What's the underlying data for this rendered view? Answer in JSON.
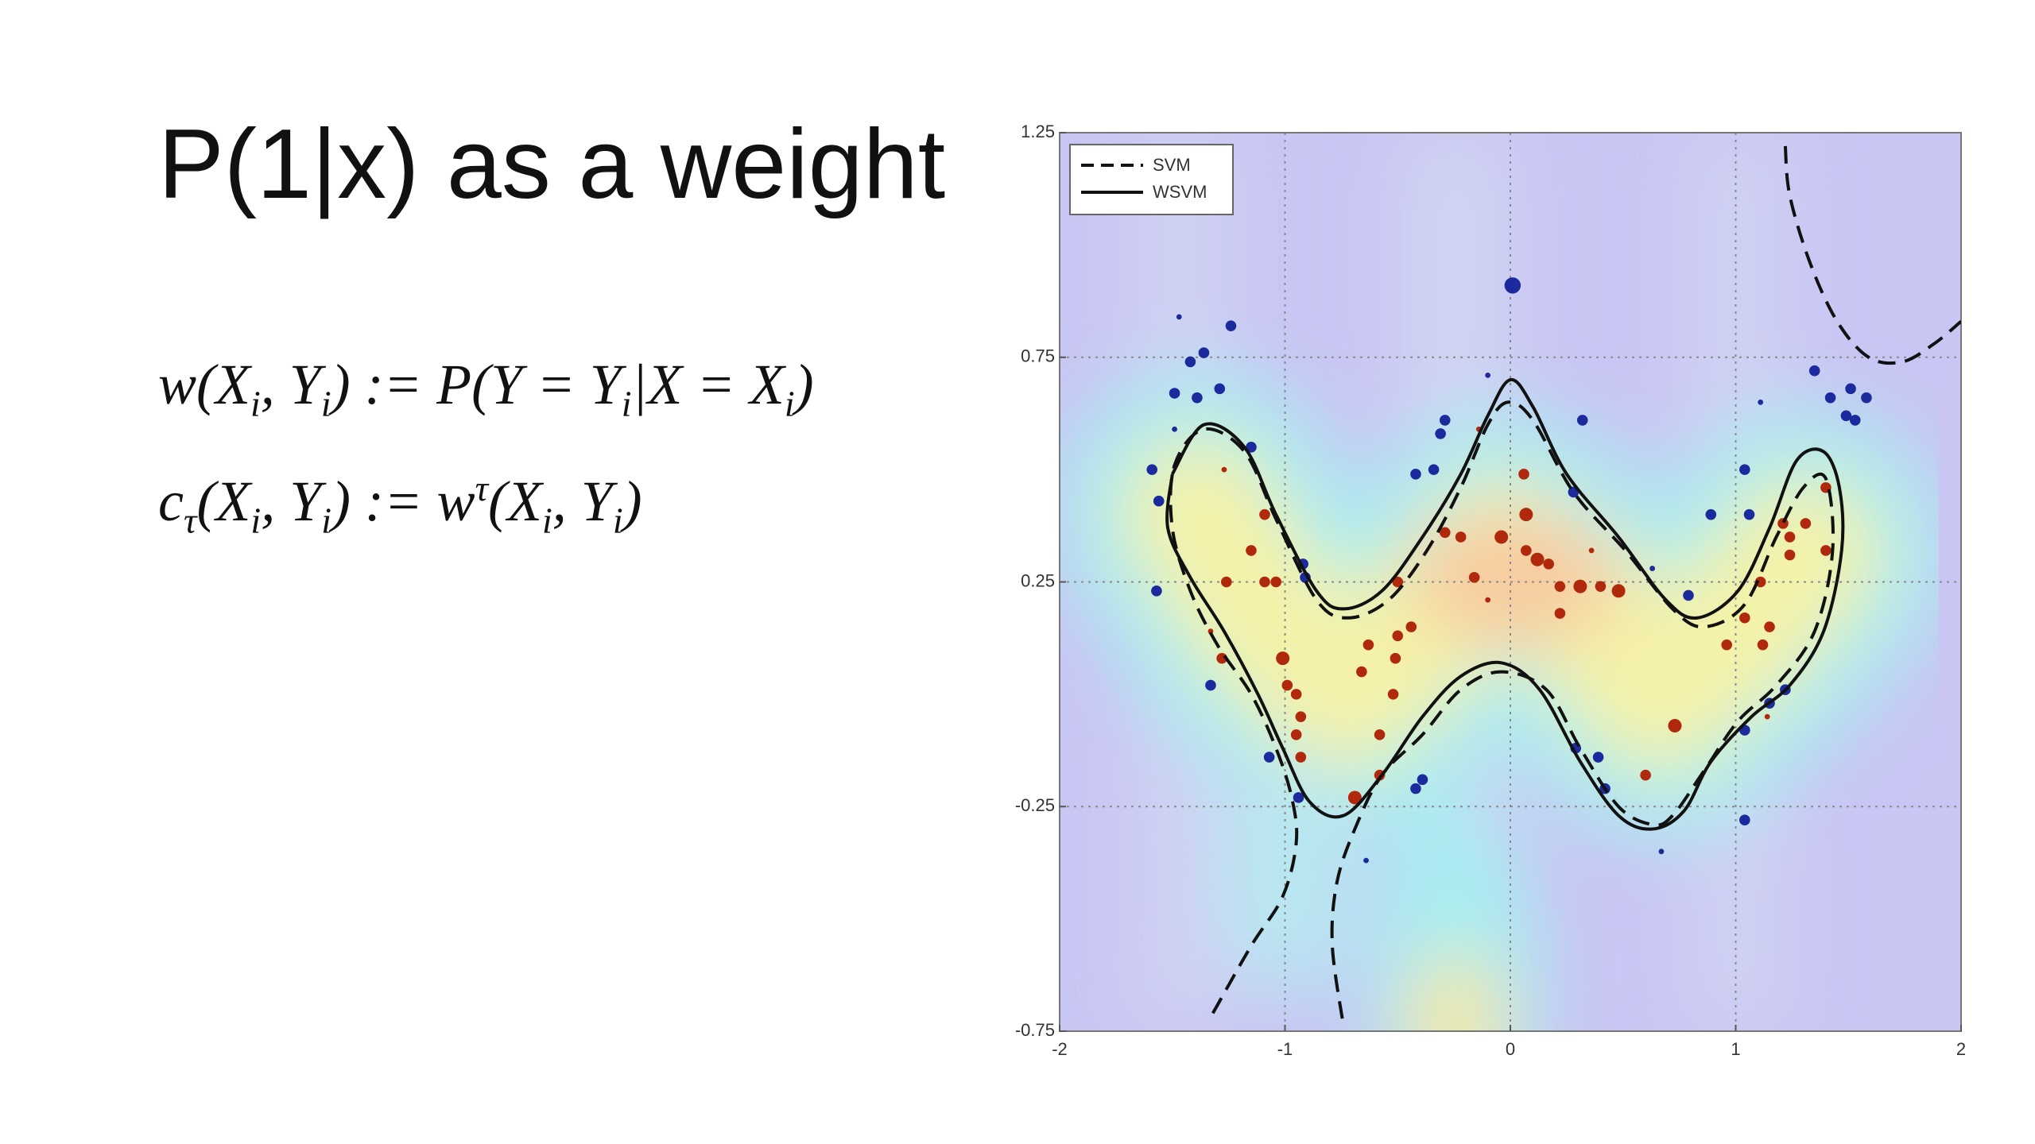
{
  "title": "P(1|x) as a weight",
  "formulas": [
    [
      {
        "text": "w(X"
      },
      {
        "sub": "i"
      },
      {
        "text": ", Y"
      },
      {
        "sub": "i"
      },
      {
        "text": ") := P(Y = Y"
      },
      {
        "sub": "i"
      },
      {
        "text": "|X = X"
      },
      {
        "sub": "i"
      },
      {
        "text": ")"
      }
    ],
    [
      {
        "text": "c"
      },
      {
        "sub": "τ"
      },
      {
        "text": "(X"
      },
      {
        "sub": "i"
      },
      {
        "text": ", Y"
      },
      {
        "sub": "i"
      },
      {
        "text": ") := w"
      },
      {
        "sup": "τ"
      },
      {
        "text": "(X"
      },
      {
        "sub": "i"
      },
      {
        "text": ", Y"
      },
      {
        "sub": "i"
      },
      {
        "text": ")"
      }
    ]
  ],
  "chart_data": {
    "type": "scatter",
    "xlim": [
      -2,
      2
    ],
    "ylim": [
      -0.75,
      1.25
    ],
    "xticks": [
      -2,
      -1,
      0,
      1,
      2
    ],
    "yticks": [
      -0.75,
      -0.25,
      0.25,
      0.75,
      1.25
    ],
    "grid": true,
    "legend": "upper left",
    "series": [
      {
        "mode": "markers",
        "color": "#1b2a9c",
        "x": [
          0.01,
          -1.24,
          -1.47,
          -1.36,
          -1.42,
          -1.49,
          -1.39,
          -1.29,
          -1.49,
          -1.15,
          -1.59,
          -1.56,
          -1.57,
          -0.92,
          -0.91,
          -1.33,
          -1.07,
          -0.94,
          -0.42,
          -0.39,
          -0.64,
          -0.29,
          -0.31,
          -0.34,
          -0.42,
          -0.1,
          0.32,
          0.28,
          0.29,
          0.42,
          0.39,
          0.67,
          1.04,
          1.04,
          1.15,
          1.22,
          0.89,
          1.04,
          1.06,
          1.35,
          1.42,
          1.51,
          1.58,
          1.49,
          1.53,
          1.11,
          0.79,
          0.63
        ],
        "values": [
          0.91,
          0.82,
          0.84,
          0.76,
          0.74,
          0.67,
          0.66,
          0.68,
          0.59,
          0.55,
          0.5,
          0.43,
          0.23,
          0.29,
          0.26,
          0.02,
          -0.14,
          -0.23,
          -0.21,
          -0.19,
          -0.37,
          0.61,
          0.58,
          0.5,
          0.49,
          0.71,
          0.61,
          0.45,
          -0.12,
          -0.21,
          -0.14,
          -0.35,
          -0.28,
          -0.08,
          -0.02,
          0.01,
          0.4,
          0.5,
          0.4,
          0.72,
          0.66,
          0.68,
          0.66,
          0.62,
          0.61,
          0.65,
          0.22,
          0.28
        ],
        "sizes": [
          6,
          4,
          2,
          4,
          4,
          4,
          4,
          4,
          2,
          4,
          4,
          4,
          4,
          4,
          4,
          4,
          4,
          4,
          4,
          4,
          2,
          4,
          4,
          4,
          4,
          2,
          4,
          4,
          4,
          4,
          4,
          2,
          4,
          4,
          4,
          4,
          4,
          4,
          4,
          4,
          4,
          4,
          4,
          4,
          4,
          2,
          4,
          2
        ]
      },
      {
        "mode": "markers",
        "color": "#b0290c",
        "x": [
          -1.27,
          -1.09,
          -1.15,
          -1.26,
          -1.09,
          -1.04,
          -1.33,
          -1.28,
          -1.01,
          -0.99,
          -0.95,
          -0.93,
          -0.95,
          -0.93,
          -0.69,
          -0.58,
          -0.58,
          -0.52,
          -0.66,
          -0.63,
          -0.5,
          -0.51,
          -0.44,
          -0.5,
          -0.29,
          -0.22,
          -0.16,
          -0.04,
          0.06,
          0.07,
          0.07,
          0.12,
          0.17,
          0.22,
          0.22,
          0.31,
          0.4,
          0.48,
          0.36,
          0.73,
          0.6,
          0.96,
          1.04,
          1.12,
          1.15,
          1.11,
          1.24,
          1.24,
          1.21,
          1.31,
          1.4,
          1.4,
          1.14,
          -0.14,
          -0.1
        ],
        "values": [
          0.5,
          0.4,
          0.32,
          0.25,
          0.25,
          0.25,
          0.14,
          0.08,
          0.08,
          0.02,
          0.0,
          -0.05,
          -0.09,
          -0.14,
          -0.23,
          -0.18,
          -0.09,
          0.0,
          0.05,
          0.11,
          0.13,
          0.08,
          0.15,
          0.25,
          0.36,
          0.35,
          0.26,
          0.35,
          0.49,
          0.4,
          0.32,
          0.3,
          0.29,
          0.18,
          0.24,
          0.24,
          0.24,
          0.23,
          0.32,
          -0.07,
          -0.18,
          0.11,
          0.17,
          0.11,
          0.15,
          0.25,
          0.31,
          0.35,
          0.38,
          0.38,
          0.46,
          0.32,
          -0.05,
          0.59,
          0.21
        ],
        "sizes": [
          2,
          4,
          4,
          4,
          4,
          4,
          2,
          4,
          5,
          4,
          4,
          4,
          4,
          4,
          5,
          4,
          4,
          4,
          4,
          4,
          4,
          4,
          4,
          4,
          4,
          4,
          4,
          5,
          4,
          5,
          4,
          5,
          4,
          4,
          4,
          5,
          4,
          5,
          2,
          5,
          4,
          4,
          4,
          4,
          4,
          4,
          4,
          4,
          4,
          4,
          4,
          4,
          2,
          2,
          2
        ]
      },
      {
        "name": "SVM",
        "mode": "line",
        "dash": true,
        "color": "#111111",
        "x": [
          -1.32,
          -1.15,
          -1.01,
          -0.95,
          -0.97,
          -1.04,
          -1.15,
          -1.3,
          -1.42,
          -1.5,
          -1.49,
          -1.36,
          -1.18,
          -1.04,
          -0.86,
          -0.72,
          -0.54,
          -0.37,
          -0.22,
          -0.1,
          -0.01,
          0.1,
          0.28,
          0.51,
          0.72,
          0.86,
          1.04,
          1.18,
          1.3,
          1.4,
          1.43,
          1.35,
          1.18,
          1.01,
          0.86,
          0.72,
          0.63,
          0.48,
          0.31,
          0.16,
          -0.04,
          -0.22,
          -0.39,
          -0.57,
          -0.69,
          -0.77,
          -0.79,
          -0.74,
          null,
          1.22,
          1.24,
          1.33,
          1.45,
          1.59,
          1.74,
          1.88,
          2.0
        ],
        "values": [
          -0.71,
          -0.56,
          -0.45,
          -0.33,
          -0.23,
          -0.12,
          0.0,
          0.11,
          0.23,
          0.37,
          0.51,
          0.59,
          0.54,
          0.39,
          0.21,
          0.17,
          0.21,
          0.32,
          0.46,
          0.6,
          0.65,
          0.61,
          0.45,
          0.32,
          0.19,
          0.15,
          0.2,
          0.35,
          0.46,
          0.48,
          0.32,
          0.14,
          0.02,
          -0.06,
          -0.17,
          -0.27,
          -0.29,
          -0.25,
          -0.12,
          0.01,
          0.05,
          0.01,
          -0.09,
          -0.18,
          -0.3,
          -0.42,
          -0.56,
          -0.74,
          null,
          1.22,
          1.11,
          0.96,
          0.83,
          0.75,
          0.74,
          0.78,
          0.83
        ]
      },
      {
        "name": "WSVM",
        "mode": "line",
        "dash": false,
        "color": "#111111",
        "x": [
          -1.5,
          -1.36,
          -1.18,
          -1.04,
          -0.86,
          -0.74,
          -0.57,
          -0.39,
          -0.22,
          -0.1,
          0.0,
          0.1,
          0.25,
          0.48,
          0.69,
          0.83,
          1.01,
          1.15,
          1.27,
          1.39,
          1.46,
          1.47,
          1.39,
          1.24,
          1.07,
          0.89,
          0.77,
          0.63,
          0.48,
          0.31,
          0.13,
          -0.04,
          -0.22,
          -0.39,
          -0.57,
          -0.74,
          -0.89,
          -1.01,
          -1.12,
          -1.27,
          -1.42,
          -1.52,
          -1.5
        ],
        "values": [
          0.49,
          0.6,
          0.55,
          0.4,
          0.23,
          0.19,
          0.23,
          0.35,
          0.49,
          0.62,
          0.7,
          0.64,
          0.49,
          0.35,
          0.21,
          0.17,
          0.23,
          0.37,
          0.52,
          0.54,
          0.46,
          0.32,
          0.14,
          0.02,
          -0.05,
          -0.15,
          -0.26,
          -0.3,
          -0.27,
          -0.15,
          0.01,
          0.07,
          0.04,
          -0.05,
          -0.18,
          -0.27,
          -0.24,
          -0.12,
          0.0,
          0.14,
          0.26,
          0.37,
          0.49
        ]
      }
    ]
  }
}
